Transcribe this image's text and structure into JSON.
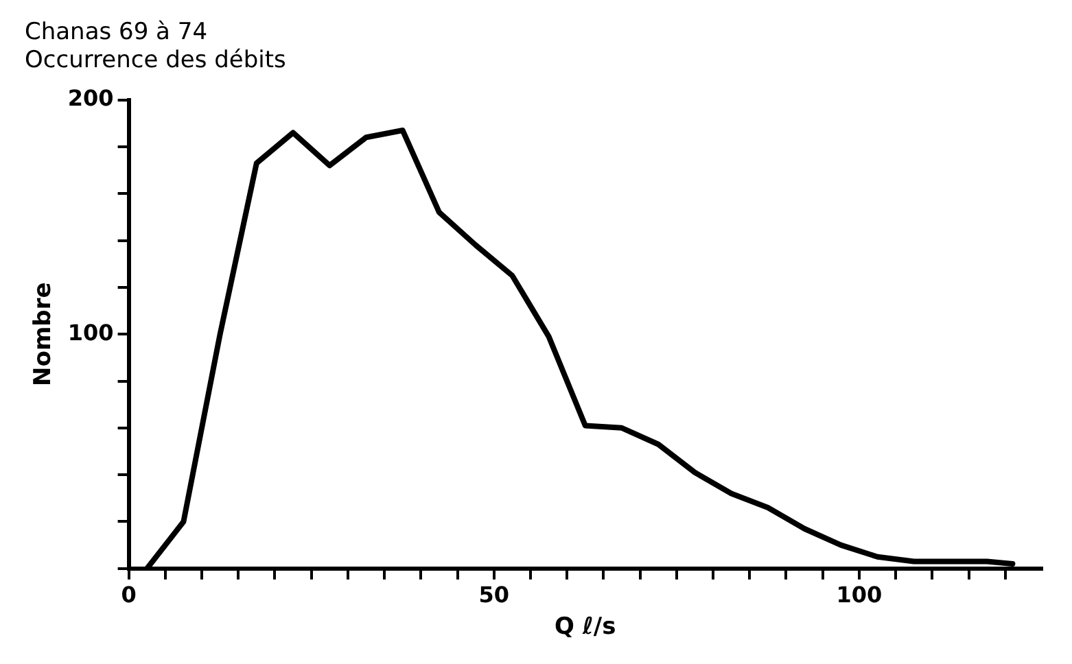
{
  "chart_data": {
    "type": "line",
    "title": "Chanas 69 à 74",
    "subtitle": "Occurrence des débits",
    "xlabel": "Q ℓ/s",
    "ylabel": "Nombre",
    "x": [
      2.5,
      7.5,
      12.5,
      17.5,
      22.5,
      27.5,
      32.5,
      37.5,
      42.5,
      47.5,
      52.5,
      57.5,
      62.5,
      67.5,
      72.5,
      77.5,
      82.5,
      87.5,
      92.5,
      97.5,
      102.5,
      107.5,
      112.5,
      117.5,
      121
    ],
    "series": [
      {
        "color": "#000000",
        "values": [
          0,
          20,
          100,
          173,
          186,
          172,
          184,
          187,
          152,
          138,
          125,
          99,
          61,
          60,
          53,
          41,
          32,
          26,
          17,
          10,
          5,
          3,
          3,
          3,
          2
        ]
      }
    ],
    "xlim": [
      0,
      125
    ],
    "xticks": [
      0,
      {
        "value": 5,
        "label": null
      },
      {
        "value": 10,
        "label": null
      },
      {
        "value": 15,
        "label": null
      },
      {
        "value": 20,
        "label": null
      },
      {
        "value": 25,
        "label": null
      },
      {
        "value": 30,
        "label": null
      },
      {
        "value": 35,
        "label": null
      },
      {
        "value": 40,
        "label": null
      },
      {
        "value": 45,
        "label": null
      },
      50,
      {
        "value": 55,
        "label": null
      },
      {
        "value": 60,
        "label": null
      },
      {
        "value": 65,
        "label": null
      },
      {
        "value": 70,
        "label": null
      },
      {
        "value": 75,
        "label": null
      },
      {
        "value": 80,
        "label": null
      },
      {
        "value": 85,
        "label": null
      },
      {
        "value": 90,
        "label": null
      },
      {
        "value": 95,
        "label": null
      },
      100,
      {
        "value": 105,
        "label": null
      },
      {
        "value": 110,
        "label": null
      },
      {
        "value": 115,
        "label": null
      },
      {
        "value": 120,
        "label": null
      }
    ],
    "ylim": [
      0,
      200
    ],
    "yticks": [
      {
        "value": 0,
        "label": null
      },
      {
        "value": 20,
        "label": null
      },
      {
        "value": 40,
        "label": null
      },
      {
        "value": 60,
        "label": null
      },
      {
        "value": 80,
        "label": null
      },
      100,
      {
        "value": 120,
        "label": null
      },
      {
        "value": 140,
        "label": null
      },
      {
        "value": 160,
        "label": null
      },
      {
        "value": 180,
        "label": null
      },
      200
    ],
    "grid": false,
    "legend": false,
    "marker": "none",
    "line_style": "solid"
  }
}
